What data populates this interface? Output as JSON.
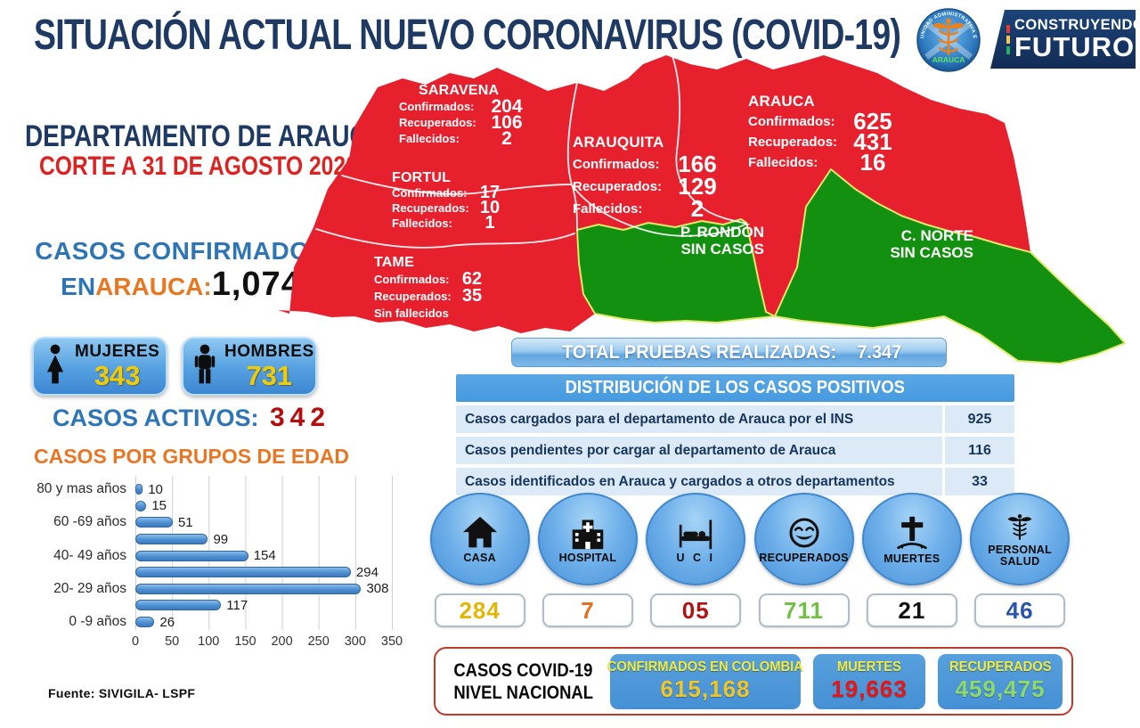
{
  "colors": {
    "title_navy": "#1E3A63",
    "red_text": "#DB2422",
    "blue_text": "#2E75B6",
    "orange_text": "#E87722",
    "active_red": "#B50E0E",
    "map_red": "#E7202E",
    "map_green": "#13900F",
    "map_border_yellow": "#DFE96A",
    "bar_blue": "#4D8FD0",
    "panel_blue": "#4A96D8",
    "badge_number_yellow": "#EFCB08"
  },
  "header": {
    "title": "SITUACIÓN ACTUAL NUEVO CORONAVIRUS (COVID-19)",
    "logo_arc_text": "UNIDAD ADMINISTRATIVA ESPECIAL DE SALUD",
    "logo_name": "ARAUCA",
    "banner_line1": "CONSTRUYENDO",
    "banner_line2": "FUTURO"
  },
  "left": {
    "department": "DEPARTAMENTO DE ARAUCA",
    "cutoff": "CORTE A 31 DE AGOSTO 2020",
    "confirmed_title": "CASOS CONFIRMADOS",
    "confirmed_in": "EN ",
    "confirmed_place": "ARAUCA:",
    "confirmed_value": "1,074",
    "women_label": "MUJERES",
    "women_value": "343",
    "men_label": "HOMBRES",
    "men_value": "731",
    "active_label": "CASOS ACTIVOS:",
    "active_value": "342",
    "age_chart_title": "CASOS POR GRUPOS DE EDAD",
    "source": "Fuente: SIVIGILA- LSPF"
  },
  "chart_data": {
    "type": "bar",
    "orientation": "horizontal",
    "title": "CASOS POR GRUPOS DE EDAD",
    "rows_top_to_bottom": [
      {
        "label": "80 y mas años",
        "value": 10
      },
      {
        "label": "",
        "value": 15
      },
      {
        "label": "60 -69 años",
        "value": 51
      },
      {
        "label": "",
        "value": 99
      },
      {
        "label": "40- 49 años",
        "value": 154
      },
      {
        "label": "",
        "value": 294
      },
      {
        "label": "20- 29 años",
        "value": 308
      },
      {
        "label": "",
        "value": 117
      },
      {
        "label": "0 -9 años",
        "value": 26
      }
    ],
    "xlim": [
      0,
      350
    ],
    "xticks": [
      0,
      50,
      100,
      150,
      200,
      250,
      300,
      350
    ],
    "grid": "vertical",
    "legend": "none"
  },
  "map": {
    "labels": {
      "confirmados": "Confirmados:",
      "recuperados": "Recuperados:",
      "fallecidos": "Fallecidos:"
    },
    "municipalities": [
      {
        "name": "SARAVENA",
        "confirmados": "204",
        "recuperados": "106",
        "fallecidos": "2"
      },
      {
        "name": "FORTUL",
        "confirmados": "17",
        "recuperados": "10",
        "fallecidos": "1"
      },
      {
        "name": "TAME",
        "confirmados": "62",
        "recuperados": "35",
        "sin_fallecidos": "Sin fallecidos"
      },
      {
        "name": "ARAUQUITA",
        "confirmados": "166",
        "recuperados": "129",
        "fallecidos": "2"
      },
      {
        "name": "ARAUCA",
        "confirmados": "625",
        "recuperados": "431",
        "fallecidos": "16"
      }
    ],
    "no_case_regions": [
      {
        "name": "P. RONDÓN",
        "label": "SIN CASOS"
      },
      {
        "name": "C. NORTE",
        "label": "SIN CASOS"
      }
    ]
  },
  "tests": {
    "label": "TOTAL PRUEBAS REALIZADAS:",
    "value": "7.347"
  },
  "distribution": {
    "header": "DISTRIBUCIÓN DE LOS CASOS POSITIVOS",
    "rows": [
      {
        "label": "Casos cargados para el departamento de Arauca por el INS",
        "value": "925"
      },
      {
        "label": "Casos pendientes por cargar al departamento de Arauca",
        "value": "116"
      },
      {
        "label": "Casos identificados en Arauca y cargados a otros departamentos",
        "value": "33"
      }
    ]
  },
  "status_circles": [
    {
      "label": "CASA",
      "value": "284",
      "icon": "house-icon",
      "value_color": "#E3B505"
    },
    {
      "label": "HOSPITAL",
      "value": "7",
      "icon": "hospital-icon",
      "value_color": "#E2711D"
    },
    {
      "label": "U C I",
      "value": "05",
      "icon": "icu-bed-icon",
      "value_color": "#B11212"
    },
    {
      "label": "RECUPERADOS",
      "value": "711",
      "icon": "smiley-icon",
      "value_color": "#71BF44"
    },
    {
      "label": "MUERTES",
      "value": "21",
      "icon": "grave-cross-icon",
      "value_color": "#101010"
    },
    {
      "label": "PERSONAL SALUD",
      "value": "46",
      "icon": "caduceus-icon",
      "value_color": "#2B55A8"
    }
  ],
  "national": {
    "title_line1": "CASOS COVID-19",
    "title_line2": "NIVEL NACIONAL",
    "boxes": [
      {
        "label": "CONFIRMADOS EN COLOMBIA",
        "value": "615,168",
        "value_color": "#EFC62A"
      },
      {
        "label": "MUERTES",
        "value": "19,663",
        "value_color": "#E81515"
      },
      {
        "label": "RECUPERADOS",
        "value": "459,475",
        "value_color": "#8FD96A"
      }
    ]
  }
}
